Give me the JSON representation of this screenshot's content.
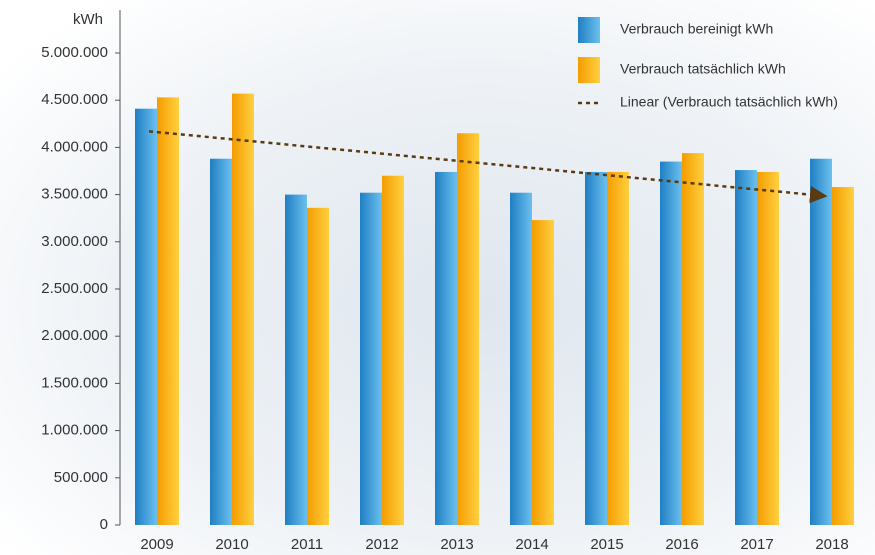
{
  "chart_data": {
    "type": "bar",
    "y_axis_label": "kWh",
    "categories": [
      "2009",
      "2010",
      "2011",
      "2012",
      "2013",
      "2014",
      "2015",
      "2016",
      "2017",
      "2018"
    ],
    "series": [
      {
        "name": "Verbrauch bereinigt kWh",
        "color": "#2f95d6",
        "values": [
          4410000,
          3880000,
          3500000,
          3520000,
          3740000,
          3520000,
          3740000,
          3850000,
          3760000,
          3880000
        ]
      },
      {
        "name": "Verbrauch tatsächlich kWh",
        "color": "#fbb010",
        "values": [
          4530000,
          4570000,
          3360000,
          3700000,
          4150000,
          3230000,
          3740000,
          3940000,
          3740000,
          3580000
        ]
      }
    ],
    "trendline": {
      "name": "Linear (Verbrauch tatsächlich kWh)",
      "color": "#5a3a12",
      "values": [
        4170000,
        4094000,
        4018000,
        3942000,
        3866000,
        3790000,
        3714000,
        3638000,
        3562000,
        3486000
      ]
    },
    "ylim": [
      0,
      5000000
    ],
    "yticks": [
      0,
      {
        "value": 500000,
        "label": "500.000"
      },
      {
        "value": 1000000,
        "label": "1.000.000"
      },
      {
        "value": 1500000,
        "label": "1.500.000"
      },
      {
        "value": 2000000,
        "label": "2.000.000"
      },
      {
        "value": 2500000,
        "label": "2.500.000"
      },
      {
        "value": 3000000,
        "label": "3.000.000"
      },
      {
        "value": 3500000,
        "label": "3.500.000"
      },
      {
        "value": 4000000,
        "label": "4.000.000"
      },
      {
        "value": 4500000,
        "label": "4.500.000"
      },
      {
        "value": 5000000,
        "label": "5.000.000"
      }
    ],
    "legend": "top-right"
  }
}
